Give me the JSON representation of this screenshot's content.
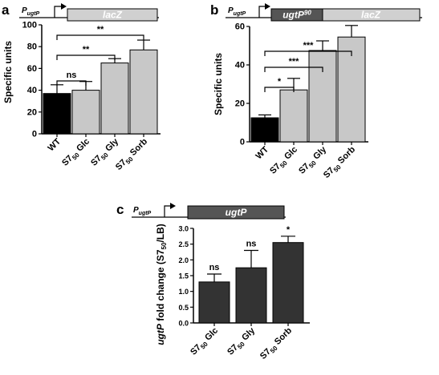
{
  "chart_data": [
    {
      "type": "bar",
      "panel": "a",
      "construct": {
        "promoter": "P",
        "promoter_sub": "ugtP",
        "gene": "lacZ"
      },
      "ylabel": "Specific units",
      "ylim": [
        0,
        100
      ],
      "yticks": [
        0,
        20,
        40,
        60,
        80,
        100
      ],
      "grid": false,
      "categories": [
        {
          "main": "WT",
          "sub": "",
          "rest": ""
        },
        {
          "main": "S7",
          "sub": "50",
          "rest": " Glc"
        },
        {
          "main": "S7",
          "sub": "50",
          "rest": " Gly"
        },
        {
          "main": "S7",
          "sub": "50",
          "rest": " Sorb"
        }
      ],
      "values": [
        37,
        40,
        65,
        77
      ],
      "errors": [
        8,
        8,
        4,
        9
      ],
      "bar_colors": [
        "#000000",
        "#c8c8c8",
        "#c8c8c8",
        "#c8c8c8"
      ],
      "comparisons": [
        {
          "from": 0,
          "to": 1,
          "label": "ns"
        },
        {
          "from": 0,
          "to": 2,
          "label": "**"
        },
        {
          "from": 0,
          "to": 3,
          "label": "**"
        }
      ]
    },
    {
      "type": "bar",
      "panel": "b",
      "construct": {
        "promoter": "P",
        "promoter_sub": "ugtP",
        "insert": "ugtP",
        "insert_sup": "90",
        "gene": "lacZ"
      },
      "ylabel": "Specific units",
      "ylim": [
        0,
        60
      ],
      "yticks": [
        0,
        20,
        40,
        60
      ],
      "grid": false,
      "categories": [
        {
          "main": "WT",
          "sub": "",
          "rest": ""
        },
        {
          "main": "S7",
          "sub": "50",
          "rest": " Glc"
        },
        {
          "main": "S7",
          "sub": "50",
          "rest": " Gly"
        },
        {
          "main": "S7",
          "sub": "50",
          "rest": " Sorb"
        }
      ],
      "values": [
        12.5,
        27,
        47.5,
        54.5
      ],
      "errors": [
        1.5,
        6,
        5,
        6
      ],
      "bar_colors": [
        "#000000",
        "#c8c8c8",
        "#c8c8c8",
        "#c8c8c8"
      ],
      "comparisons": [
        {
          "from": 0,
          "to": 1,
          "label": "*"
        },
        {
          "from": 0,
          "to": 2,
          "label": "***"
        },
        {
          "from": 0,
          "to": 3,
          "label": "***"
        }
      ]
    },
    {
      "type": "bar",
      "panel": "c",
      "construct": {
        "promoter": "P",
        "promoter_sub": "ugtP",
        "gene": "ugtP"
      },
      "ylabel": {
        "gene": "ugtP",
        "text1": " fold change (S7",
        "sub": "50",
        "text2": "/LB)"
      },
      "ylim": [
        0,
        3.0
      ],
      "yticks": [
        0,
        0.5,
        1.0,
        1.5,
        2.0,
        2.5,
        3.0
      ],
      "grid": false,
      "categories": [
        {
          "main": "S7",
          "sub": "50",
          "rest": " Glc"
        },
        {
          "main": "S7",
          "sub": "50",
          "rest": " Gly"
        },
        {
          "main": "S7",
          "sub": "50",
          "rest": " Sorb"
        }
      ],
      "values": [
        1.3,
        1.75,
        2.55
      ],
      "errors": [
        0.25,
        0.55,
        0.2
      ],
      "bar_colors": [
        "#333333",
        "#333333",
        "#333333"
      ],
      "bar_labels": [
        "ns",
        "ns",
        "*"
      ]
    }
  ]
}
